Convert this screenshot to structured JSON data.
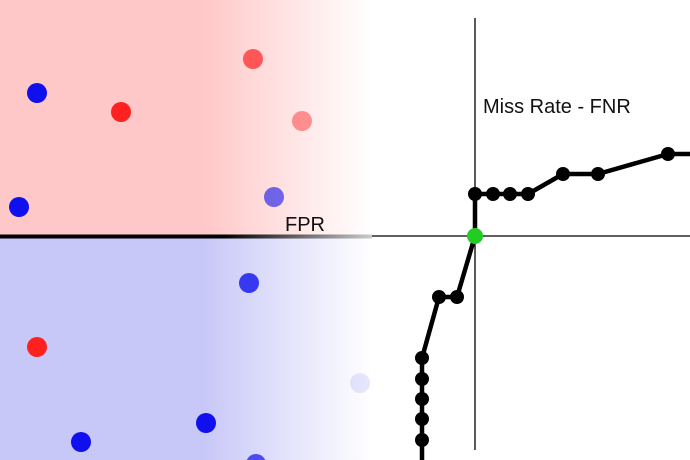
{
  "labels": {
    "fpr": "FPR",
    "miss_rate": "Miss Rate - FNR"
  },
  "colors": {
    "positive_region": "#ffc8c8",
    "negative_region": "#c8c8f8",
    "red_point": "#ff2020",
    "blue_point": "#1010ee",
    "curve": "#000000",
    "threshold_point": "#22cc22"
  },
  "scatter_points": [
    {
      "region": "top",
      "class": "blue",
      "opacity": 1.0
    },
    {
      "region": "top",
      "class": "red",
      "opacity": 1.0
    },
    {
      "region": "top",
      "class": "red",
      "opacity": 0.7
    },
    {
      "region": "top",
      "class": "red",
      "opacity": 0.45
    },
    {
      "region": "top",
      "class": "blue",
      "opacity": 0.6
    },
    {
      "region": "top",
      "class": "blue",
      "opacity": 1.0
    },
    {
      "region": "bottom",
      "class": "blue",
      "opacity": 0.8
    },
    {
      "region": "bottom",
      "class": "red",
      "opacity": 1.0
    },
    {
      "region": "bottom",
      "class": "blue",
      "opacity": 0.1
    },
    {
      "region": "bottom",
      "class": "blue",
      "opacity": 1.0
    },
    {
      "region": "bottom",
      "class": "blue",
      "opacity": 1.0
    },
    {
      "region": "bottom",
      "class": "blue",
      "opacity": 0.7
    }
  ]
}
